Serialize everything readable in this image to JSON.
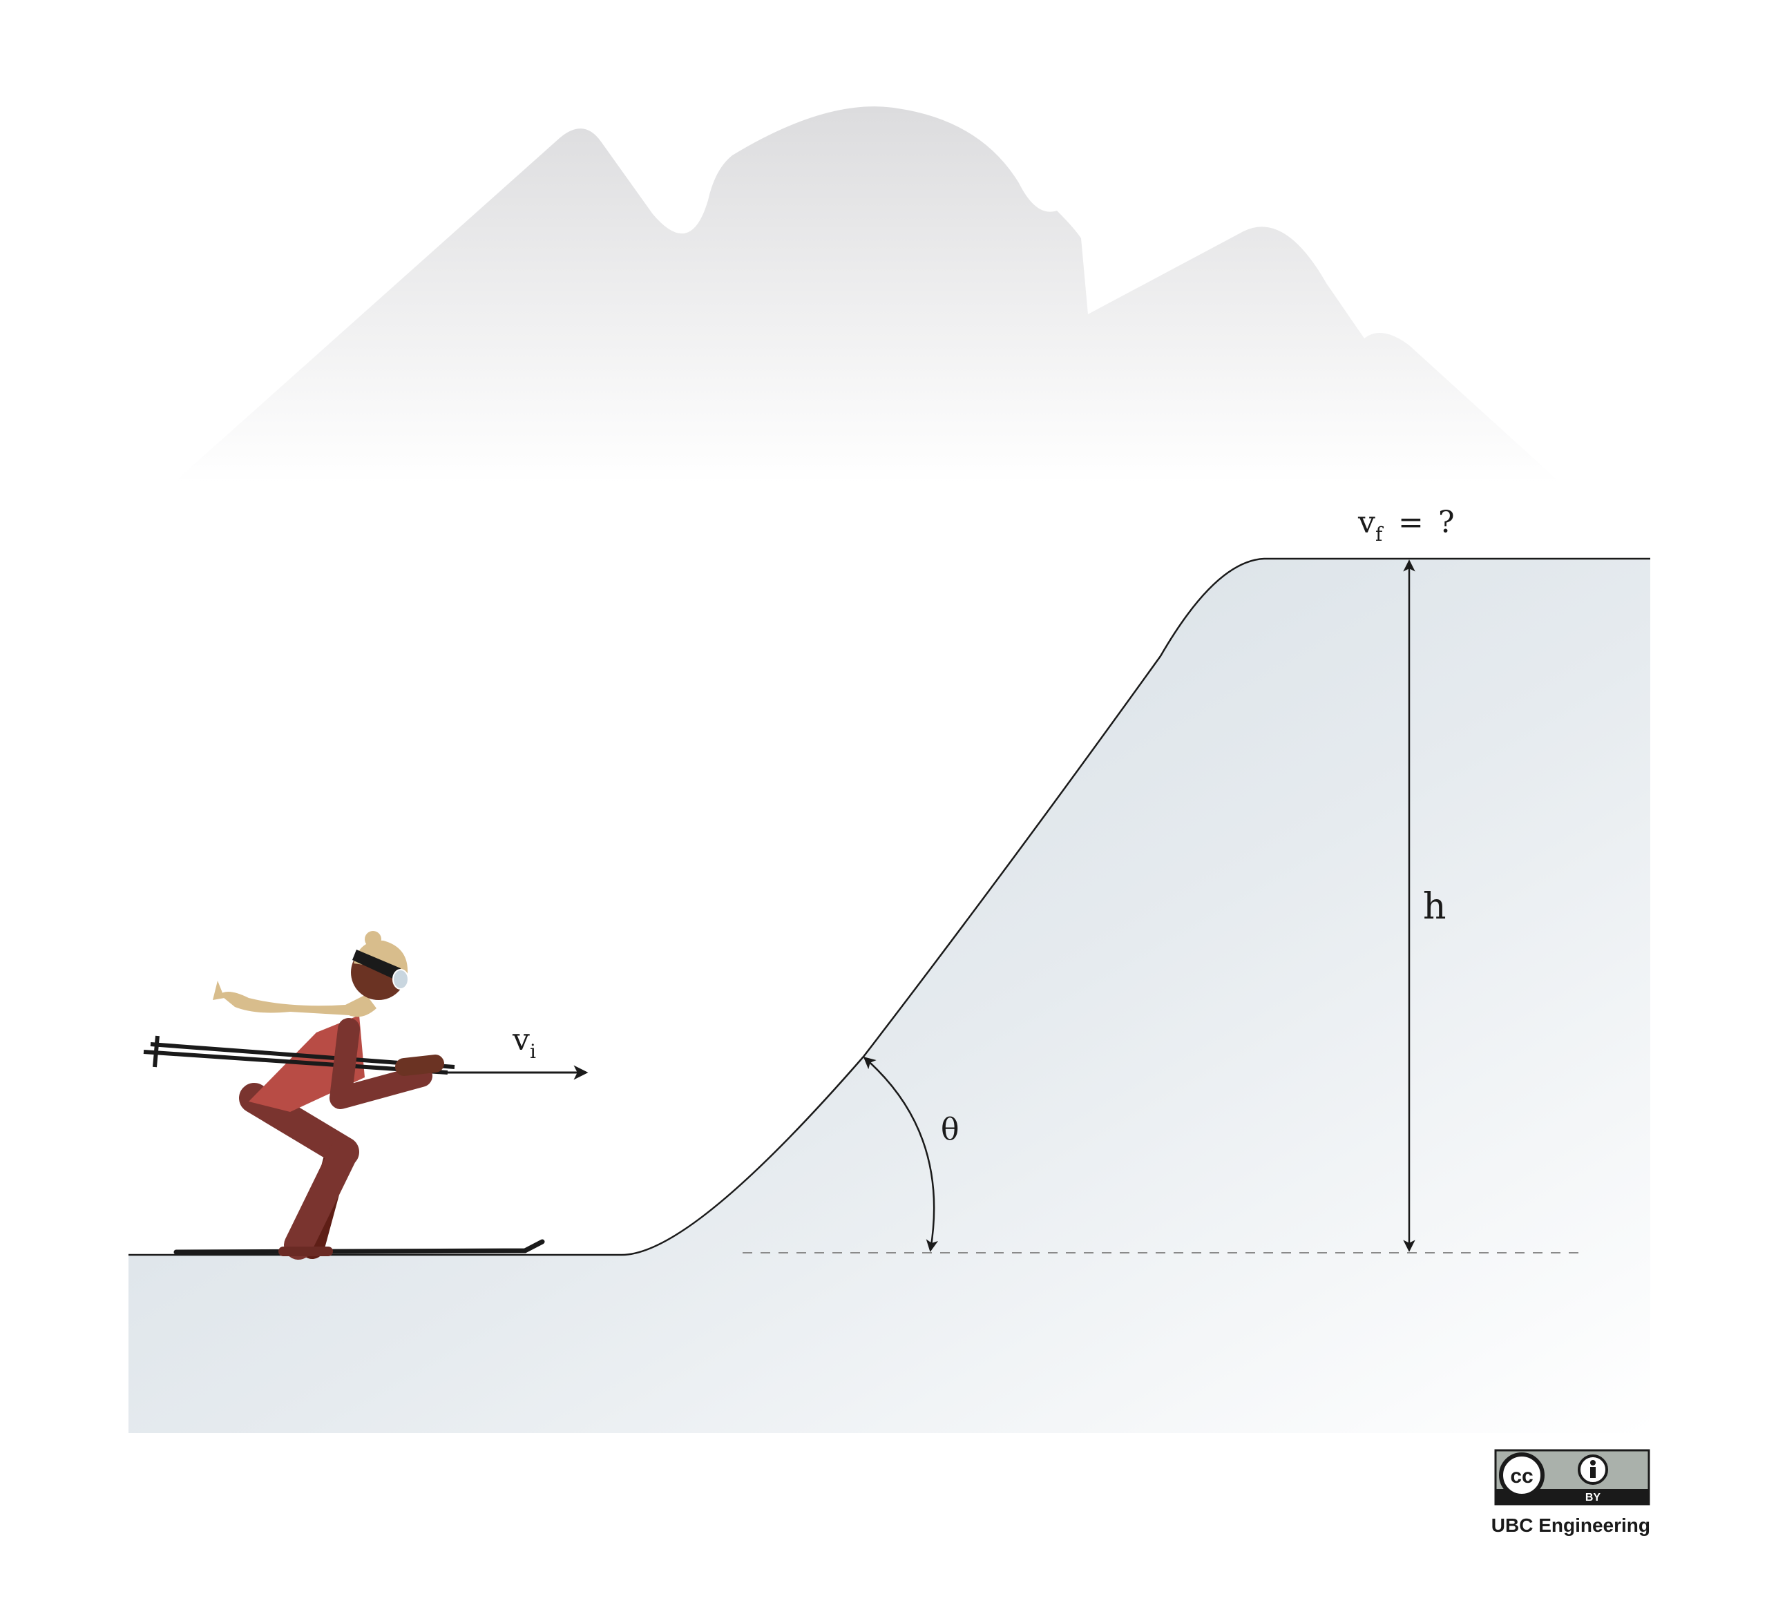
{
  "labels": {
    "vi_main": "v",
    "vi_sub": "i",
    "vf_main": "v",
    "vf_sub": "f",
    "vf_eq": "=",
    "vf_q": "?",
    "height": "h",
    "angle": "θ"
  },
  "badge": {
    "cc": "cc",
    "by": "BY"
  },
  "credit": "UBC Engineering",
  "icons": [
    "skier-figure",
    "mountain-silhouette",
    "cc-icon",
    "attribution-icon"
  ],
  "colors": {
    "ink": "#1a1a1a",
    "snow": "#d3dde4",
    "mountain": "#dcdcde",
    "suit": "#b84c45",
    "suit_dark": "#7a342f",
    "skin": "#6b3323",
    "hat": "#d8bd8c",
    "badge_grey": "#aab1ab"
  }
}
